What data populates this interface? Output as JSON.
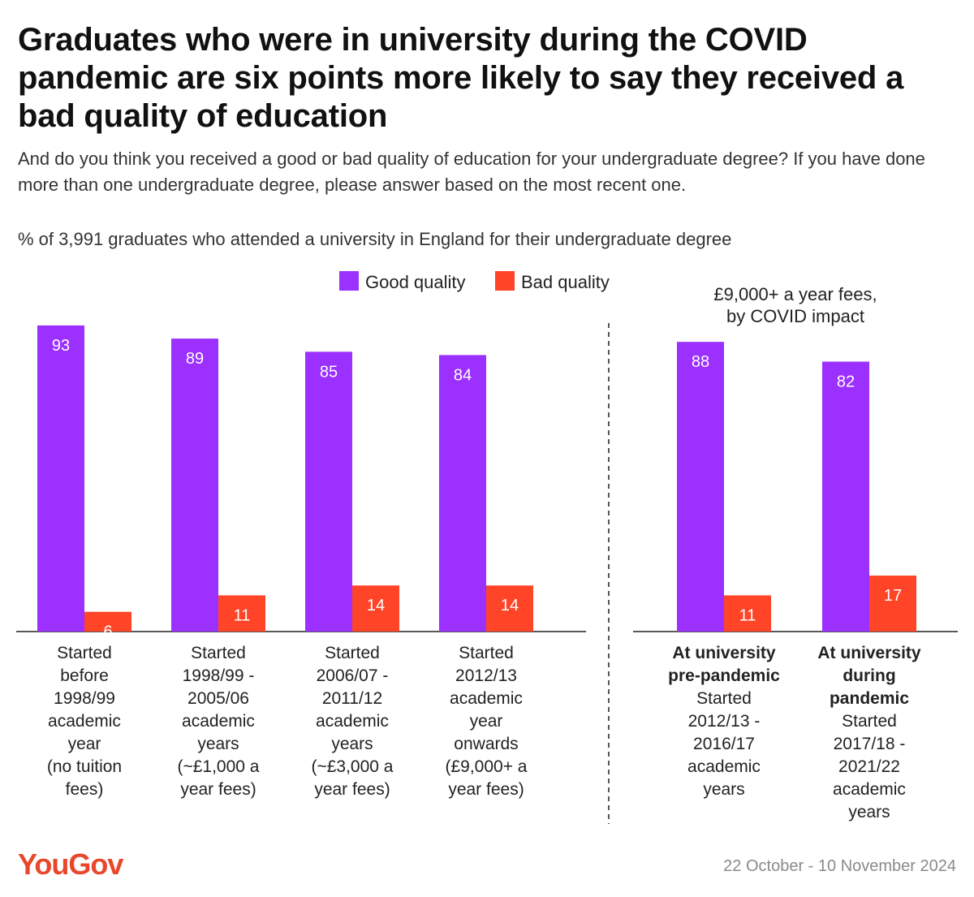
{
  "title": "Graduates who were in university during the COVID pandemic are six points more likely to say they received a bad quality of education",
  "subtitle": "And do you think you received a good or bad quality of education for your undergraduate degree? If you have done more than one undergraduate degree, please answer based on the most recent one.",
  "base_note": "% of 3,991 graduates who attended a university in England for their undergraduate degree",
  "legend": [
    {
      "label": "Good quality",
      "color": "#9b30ff"
    },
    {
      "label": "Bad quality",
      "color": "#ff4428"
    }
  ],
  "right_panel_title": [
    "£9,000+ a year fees,",
    "by COVID impact"
  ],
  "brand": "YouGov",
  "date_range": "22 October - 10 November 2024",
  "colors": {
    "good": "#9b30ff",
    "bad": "#ff4428",
    "axis": "#222222",
    "divider": "#555555"
  },
  "chart_data": {
    "type": "bar",
    "ylim": [
      0,
      100
    ],
    "series_names": [
      "Good quality",
      "Bad quality"
    ],
    "panels": [
      {
        "groups": [
          {
            "label_bold": [],
            "label": [
              "Started",
              "before",
              "1998/99",
              "academic",
              "year",
              "(no tuition",
              "fees)"
            ],
            "good": 93,
            "bad": 6
          },
          {
            "label_bold": [],
            "label": [
              "Started",
              "1998/99 -",
              "2005/06",
              "academic",
              "years",
              "(~£1,000 a",
              "year fees)"
            ],
            "good": 89,
            "bad": 11
          },
          {
            "label_bold": [],
            "label": [
              "Started",
              "2006/07 -",
              "2011/12",
              "academic",
              "years",
              "(~£3,000 a",
              "year fees)"
            ],
            "good": 85,
            "bad": 14
          },
          {
            "label_bold": [],
            "label": [
              "Started",
              "2012/13",
              "academic",
              "year",
              "onwards",
              "(£9,000+ a",
              "year fees)"
            ],
            "good": 84,
            "bad": 14
          }
        ]
      },
      {
        "groups": [
          {
            "label_bold": [
              "At university",
              "pre-pandemic"
            ],
            "label": [
              "Started",
              "2012/13 -",
              "2016/17",
              "academic",
              "years"
            ],
            "good": 88,
            "bad": 11
          },
          {
            "label_bold": [
              "At university",
              "during",
              "pandemic"
            ],
            "label": [
              "Started",
              "2017/18 -",
              "2021/22",
              "academic",
              "years"
            ],
            "good": 82,
            "bad": 17
          }
        ]
      }
    ]
  }
}
